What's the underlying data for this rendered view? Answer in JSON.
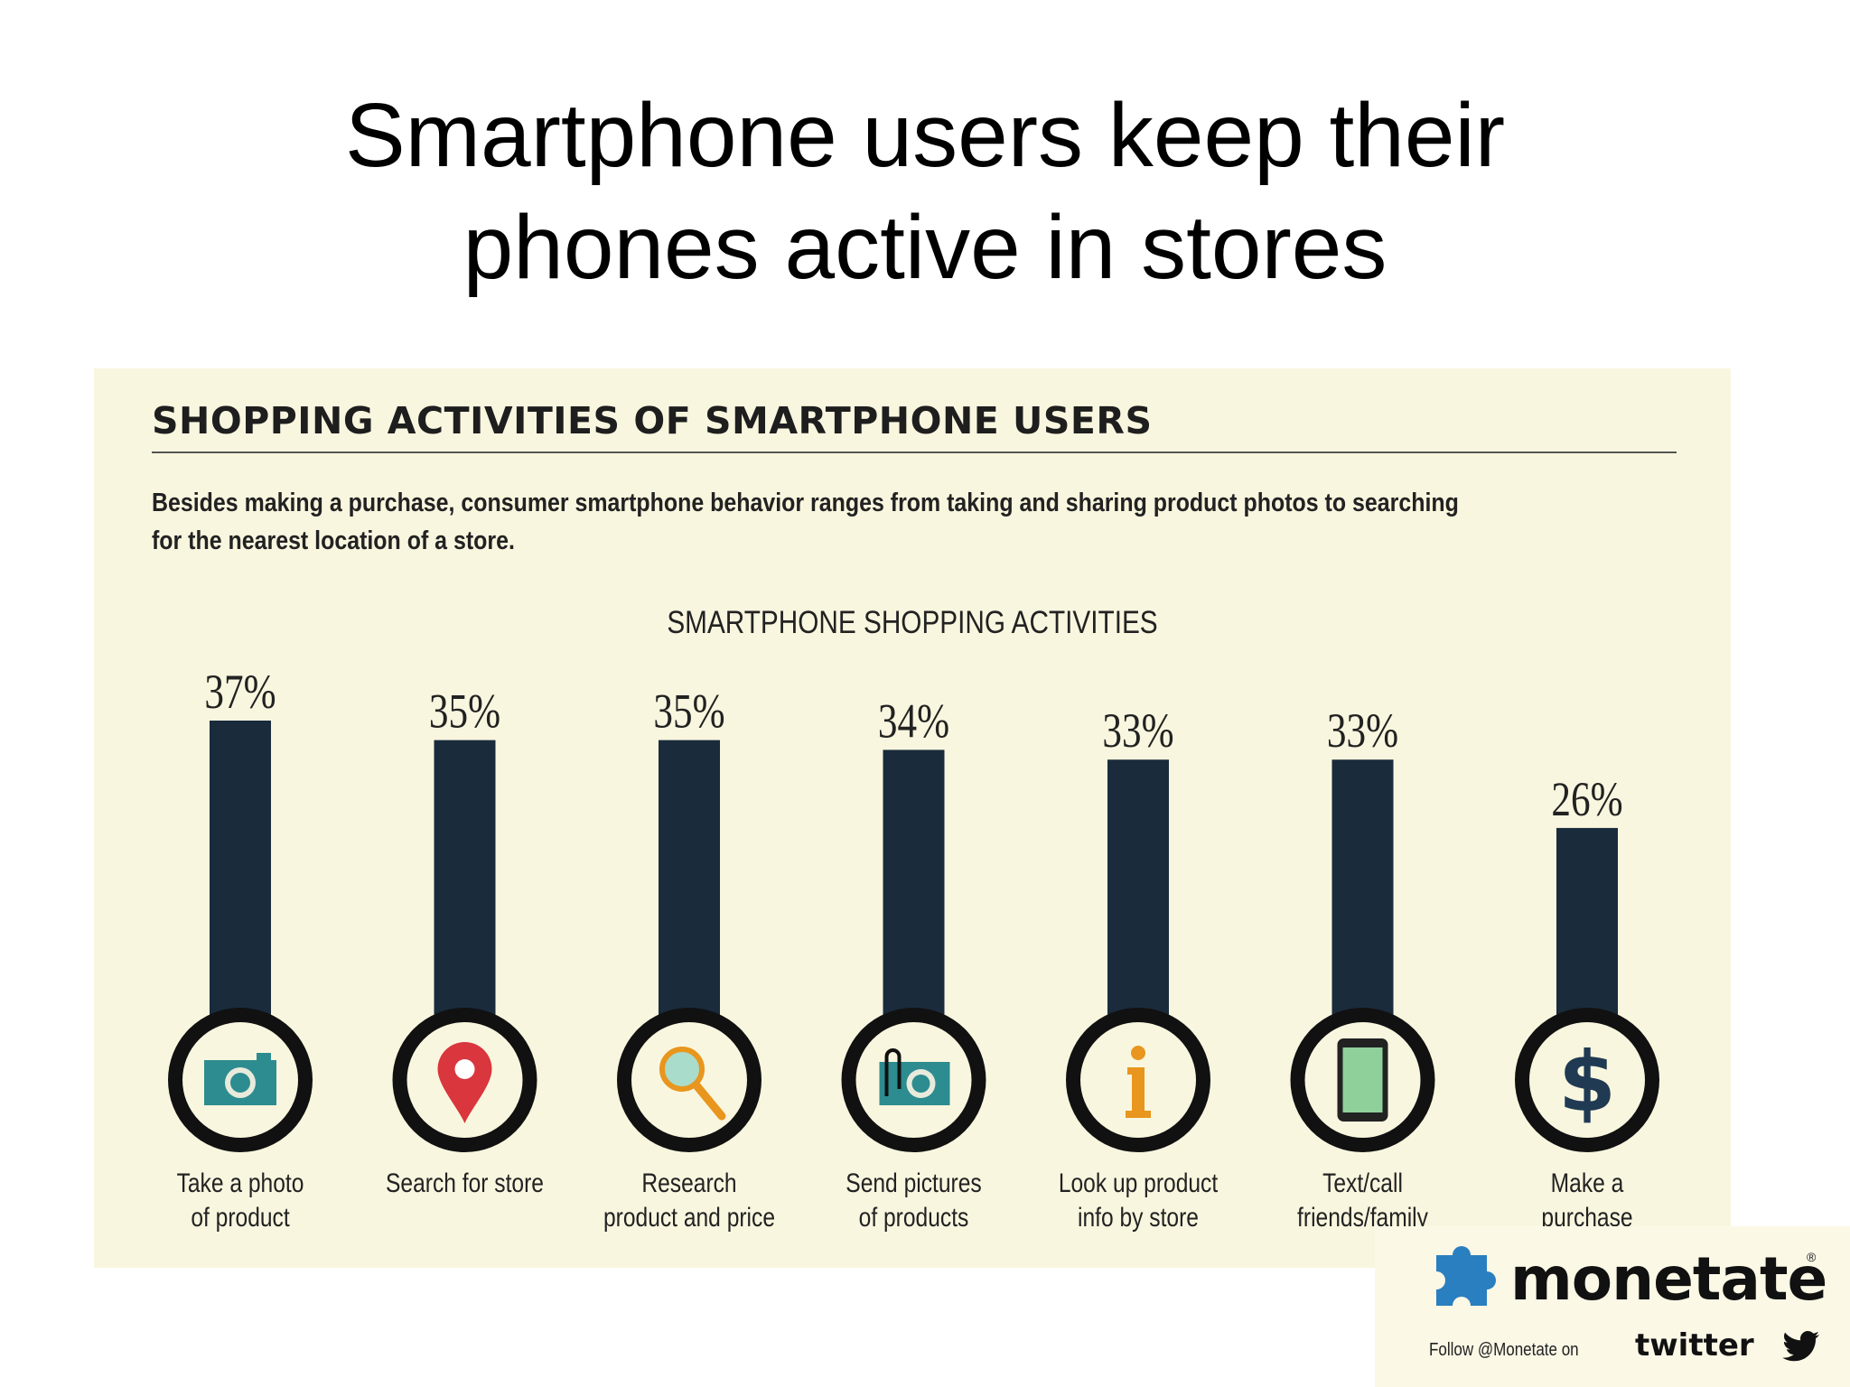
{
  "slide": {
    "title_line1": "Smartphone users keep their",
    "title_line2": "phones active in stores"
  },
  "infographic": {
    "heading": "SHOPPING ACTIVITIES OF SMARTPHONE USERS",
    "description": "Besides making a purchase, consumer smartphone behavior ranges from taking and sharing product photos to searching for the nearest location of a store.",
    "chart_title": "SMARTPHONE SHOPPING ACTIVITIES"
  },
  "chart_data": {
    "type": "bar",
    "title": "SMARTPHONE SHOPPING ACTIVITIES",
    "categories": [
      [
        "Take a photo",
        "of product"
      ],
      [
        "Search for store"
      ],
      [
        "Research",
        "product and price"
      ],
      [
        "Send pictures",
        "of products"
      ],
      [
        "Look up product",
        "info by store"
      ],
      [
        "Text/call",
        "friends/family"
      ],
      [
        "Make a",
        "purchase"
      ]
    ],
    "values": [
      37,
      35,
      35,
      34,
      33,
      33,
      26
    ],
    "value_labels": [
      "37%",
      "35%",
      "35%",
      "34%",
      "33%",
      "33%",
      "26%"
    ],
    "icons": [
      "camera-icon",
      "map-pin-icon",
      "magnifier-icon",
      "photo-clip-icon",
      "info-icon",
      "phone-icon",
      "dollar-icon"
    ],
    "bar_color": "#1a2b3c",
    "ylim": [
      0,
      37
    ],
    "grid": false
  },
  "colors": {
    "teal": "#2d8c8f",
    "red": "#d9363e",
    "orange": "#e8961e",
    "bar": "#1a2b3c",
    "panel": "#f9f6df"
  },
  "logo": {
    "name": "monetate",
    "follow": "Follow @Monetate on",
    "twitter": "twitter"
  }
}
